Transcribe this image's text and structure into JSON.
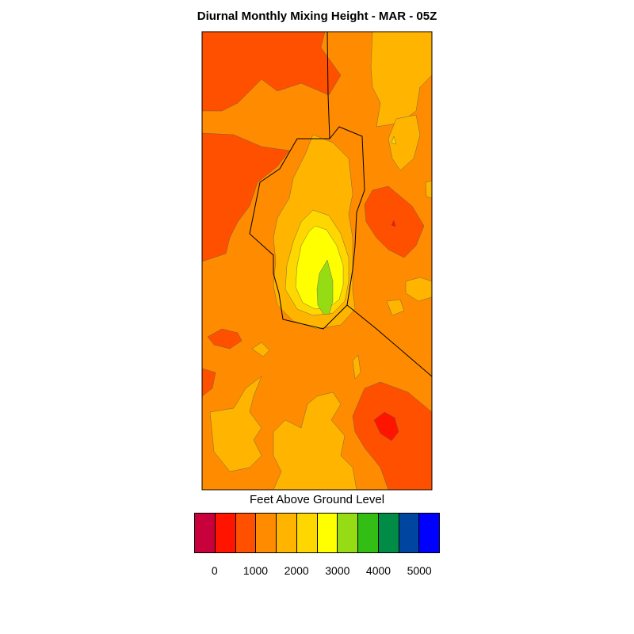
{
  "title": "Diurnal Monthly Mixing Height - MAR - 05Z",
  "legend": {
    "title": "Feet Above Ground Level",
    "tick_labels": [
      "0",
      "1000",
      "2000",
      "3000",
      "4000",
      "5000"
    ],
    "colors": [
      "#c8003c",
      "#ff1400",
      "#ff5000",
      "#ff8c00",
      "#ffb400",
      "#ffd700",
      "#ffff00",
      "#96dc14",
      "#32be14",
      "#008c46",
      "#0046a0",
      "#0000ff"
    ]
  },
  "contour_colors": {
    "red": "#ff1400",
    "red_orange": "#ff5000",
    "orange": "#ff8c00",
    "light_orange": "#ffb400",
    "gold": "#ffd700",
    "yellow": "#ffff00",
    "green": "#96dc14"
  }
}
